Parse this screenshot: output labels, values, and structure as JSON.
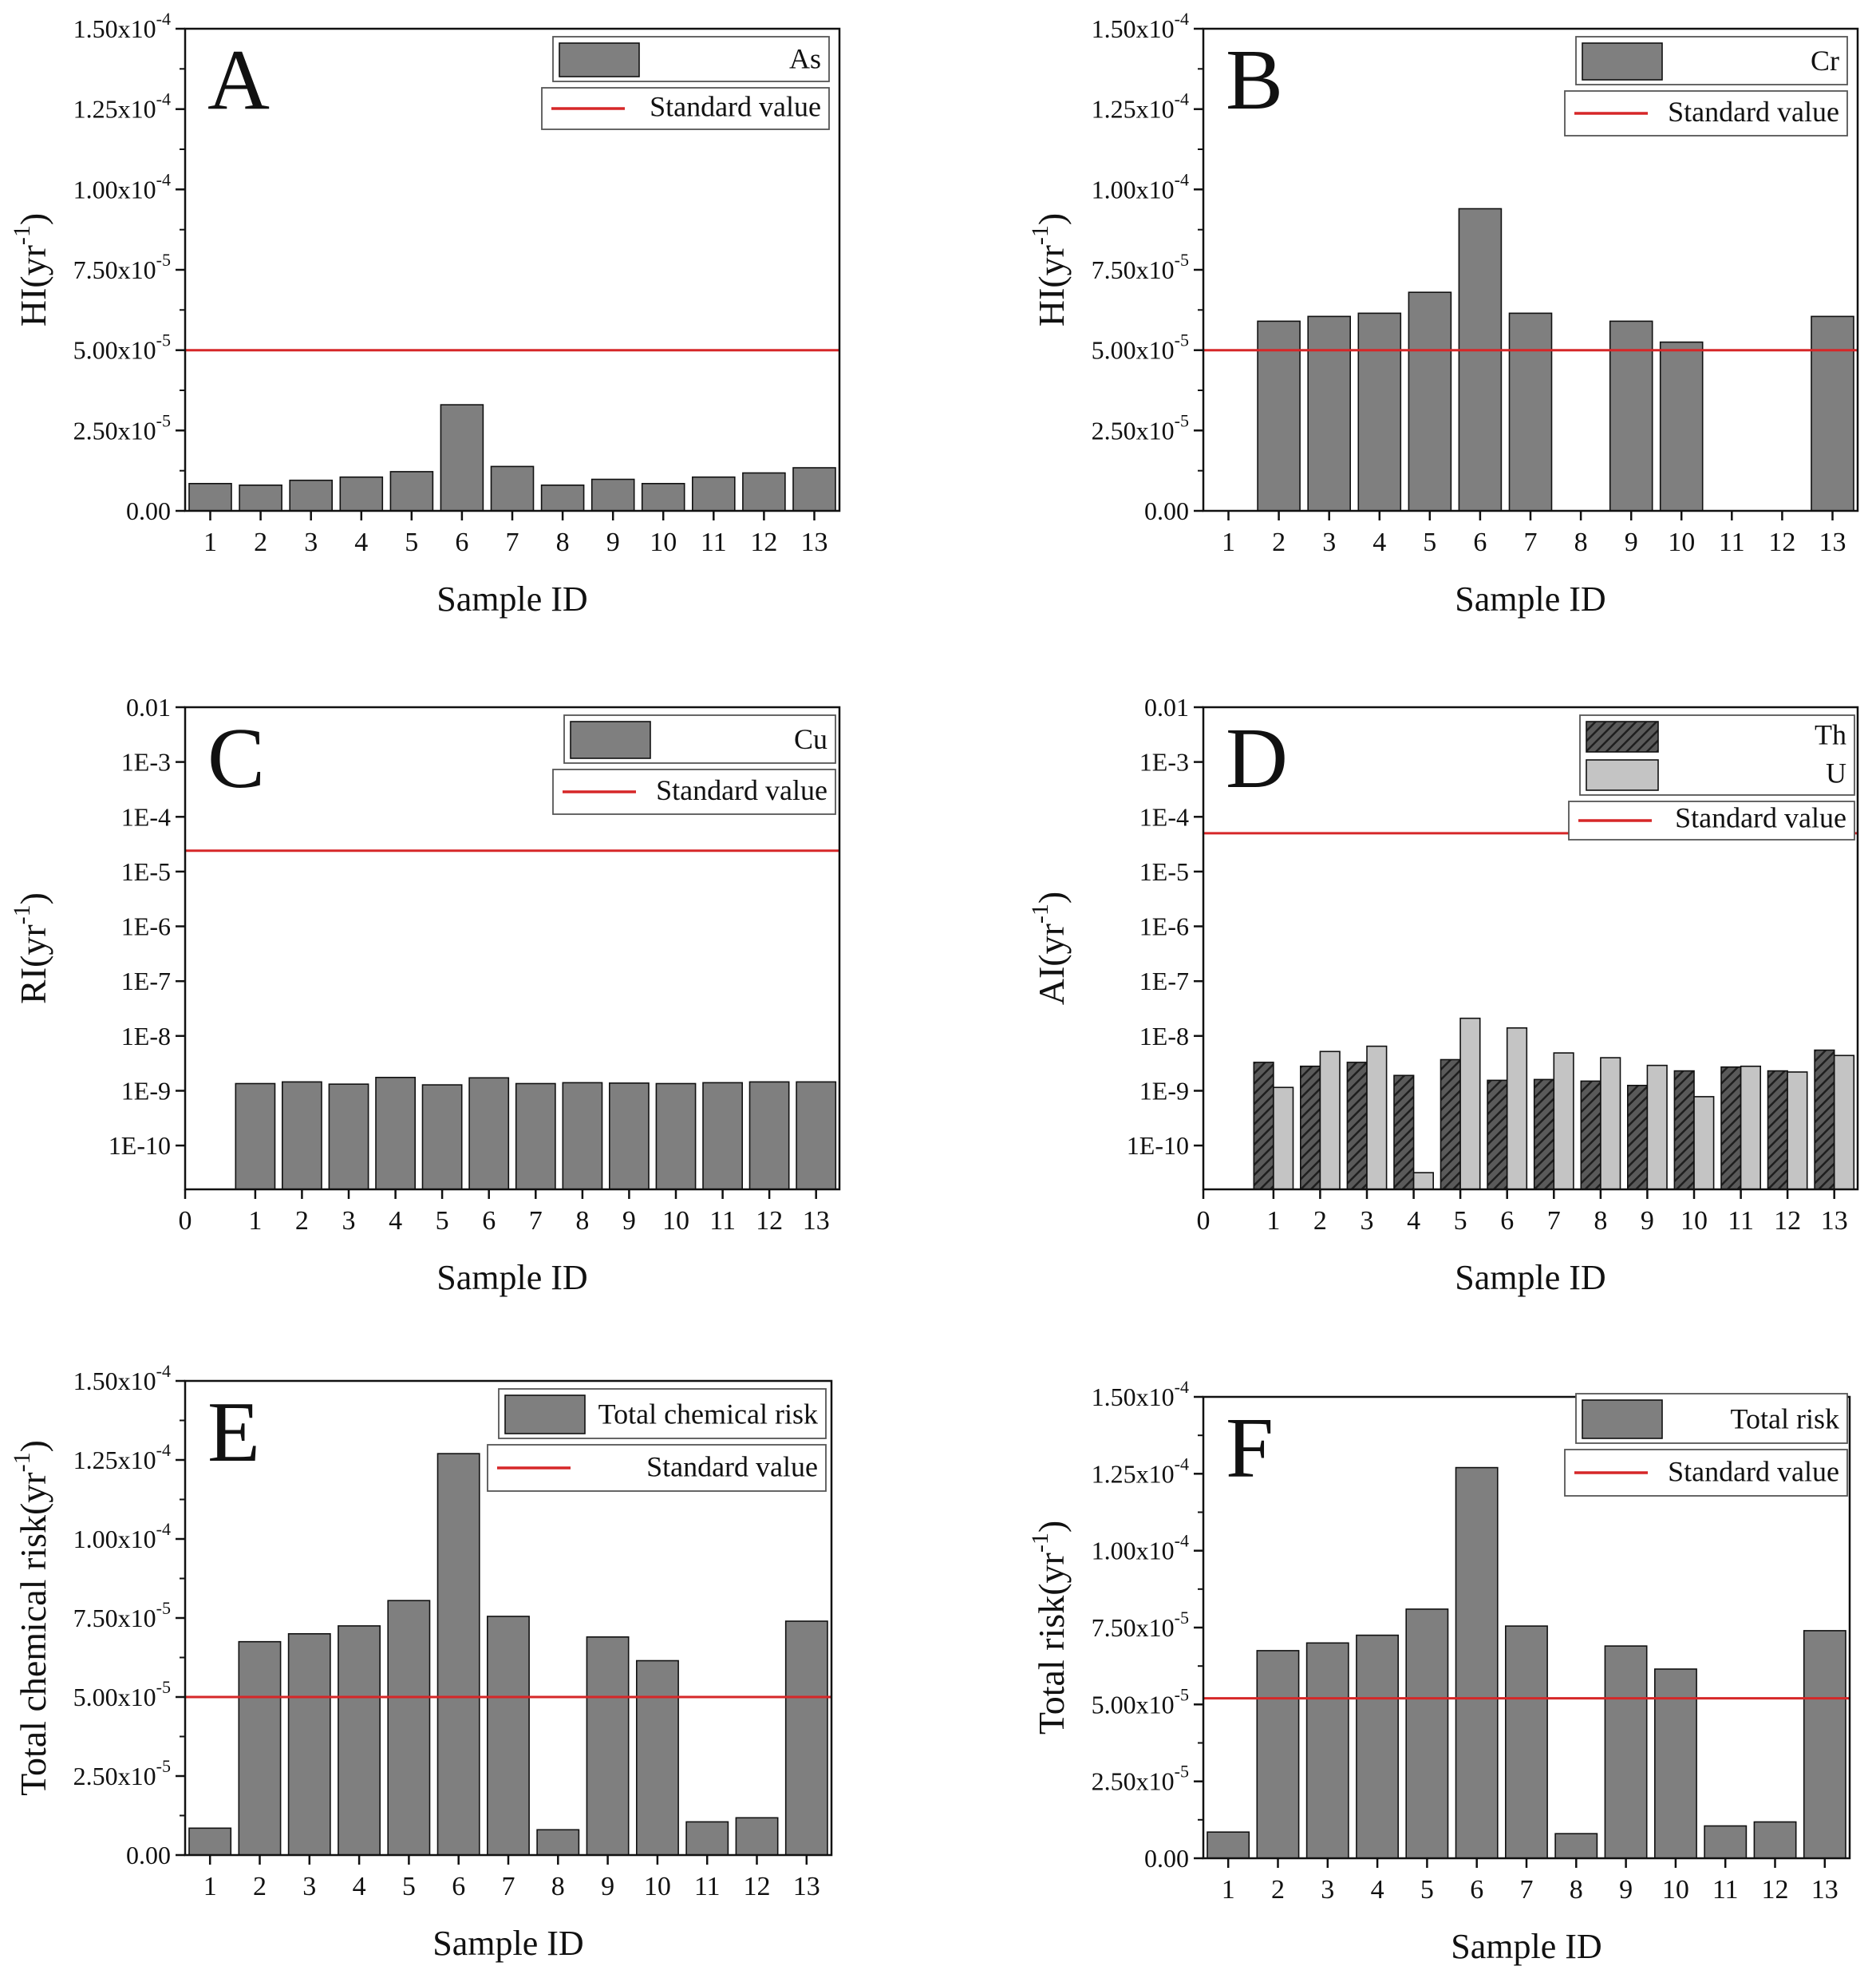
{
  "figure": {
    "layout": "3 rows x 2 columns"
  },
  "colors": {
    "bar": "#7f7f7f",
    "bar_light": "#c4c4c4",
    "standard_line": "#d62728",
    "axis": "#111111"
  },
  "chart_data": [
    {
      "id": "A",
      "panel_letter": "A",
      "type": "bar",
      "scale": "linear",
      "ylabel_main": "HI(yr",
      "ylabel_sup": "-1",
      "ylabel_close": ")",
      "xlabel": "Sample ID",
      "categories": [
        "1",
        "2",
        "3",
        "4",
        "5",
        "6",
        "7",
        "8",
        "9",
        "10",
        "11",
        "12",
        "13"
      ],
      "series": [
        {
          "name": "As",
          "style": "solid",
          "values": [
            8.5e-06,
            8e-06,
            9.5e-06,
            1.05e-05,
            1.22e-05,
            3.3e-05,
            1.38e-05,
            8e-06,
            9.8e-06,
            8.5e-06,
            1.05e-05,
            1.18e-05,
            1.34e-05
          ]
        }
      ],
      "standard_value": 5e-05,
      "standard_label": "Standard value",
      "ylim": [
        0,
        0.00015
      ],
      "yticks": [
        {
          "v": 0,
          "m": "0.00",
          "e": ""
        },
        {
          "v": 2.5e-05,
          "m": "2.50x10",
          "e": "-5"
        },
        {
          "v": 5e-05,
          "m": "5.00x10",
          "e": "-5"
        },
        {
          "v": 7.5e-05,
          "m": "7.50x10",
          "e": "-5"
        },
        {
          "v": 0.0001,
          "m": "1.00x10",
          "e": "-4"
        },
        {
          "v": 0.000125,
          "m": "1.25x10",
          "e": "-4"
        },
        {
          "v": 0.00015,
          "m": "1.50x10",
          "e": "-4"
        }
      ]
    },
    {
      "id": "B",
      "panel_letter": "B",
      "type": "bar",
      "scale": "linear",
      "ylabel_main": "HI(yr",
      "ylabel_sup": "-1",
      "ylabel_close": ")",
      "xlabel": "Sample ID",
      "categories": [
        "1",
        "2",
        "3",
        "4",
        "5",
        "6",
        "7",
        "8",
        "9",
        "10",
        "11",
        "12",
        "13"
      ],
      "series": [
        {
          "name": "Cr",
          "style": "solid",
          "values": [
            0,
            5.9e-05,
            6.05e-05,
            6.15e-05,
            6.8e-05,
            9.4e-05,
            6.15e-05,
            0,
            5.9e-05,
            5.25e-05,
            0,
            0,
            6.05e-05
          ]
        }
      ],
      "standard_value": 5e-05,
      "standard_label": "Standard value",
      "ylim": [
        0,
        0.00015
      ],
      "yticks": [
        {
          "v": 0,
          "m": "0.00",
          "e": ""
        },
        {
          "v": 2.5e-05,
          "m": "2.50x10",
          "e": "-5"
        },
        {
          "v": 5e-05,
          "m": "5.00x10",
          "e": "-5"
        },
        {
          "v": 7.5e-05,
          "m": "7.50x10",
          "e": "-5"
        },
        {
          "v": 0.0001,
          "m": "1.00x10",
          "e": "-4"
        },
        {
          "v": 0.000125,
          "m": "1.25x10",
          "e": "-4"
        },
        {
          "v": 0.00015,
          "m": "1.50x10",
          "e": "-4"
        }
      ]
    },
    {
      "id": "C",
      "panel_letter": "C",
      "type": "bar",
      "scale": "log",
      "ylabel_main": "RI(yr",
      "ylabel_sup": "-1",
      "ylabel_close": ")",
      "xlabel": "Sample ID",
      "categories": [
        "0",
        "1",
        "2",
        "3",
        "4",
        "5",
        "6",
        "7",
        "8",
        "9",
        "10",
        "11",
        "12",
        "13"
      ],
      "series": [
        {
          "name": "Cu",
          "style": "solid",
          "values": [
            null,
            1.35e-09,
            1.45e-09,
            1.32e-09,
            1.75e-09,
            1.28e-09,
            1.72e-09,
            1.35e-09,
            1.4e-09,
            1.38e-09,
            1.35e-09,
            1.4e-09,
            1.45e-09,
            1.45e-09
          ]
        }
      ],
      "standard_value": 2.4e-05,
      "standard_label": "Standard value",
      "ylim_exp": [
        -10.8,
        -2
      ],
      "yticks": [
        {
          "v": -10,
          "m": "1E-10"
        },
        {
          "v": -9,
          "m": "1E-9"
        },
        {
          "v": -8,
          "m": "1E-8"
        },
        {
          "v": -7,
          "m": "1E-7"
        },
        {
          "v": -6,
          "m": "1E-6"
        },
        {
          "v": -5,
          "m": "1E-5"
        },
        {
          "v": -4,
          "m": "1E-4"
        },
        {
          "v": -3,
          "m": "1E-3"
        },
        {
          "v": -2,
          "m": "0.01"
        }
      ]
    },
    {
      "id": "D",
      "panel_letter": "D",
      "type": "bar",
      "scale": "log",
      "ylabel_main": "AI(yr",
      "ylabel_sup": "-1",
      "ylabel_close": ")",
      "xlabel": "Sample ID",
      "categories": [
        "0",
        "1",
        "2",
        "3",
        "4",
        "5",
        "6",
        "7",
        "8",
        "9",
        "10",
        "11",
        "12",
        "13"
      ],
      "series": [
        {
          "name": "Th",
          "style": "hatch",
          "values": [
            null,
            3.3e-09,
            2.8e-09,
            3.3e-09,
            1.9e-09,
            3.7e-09,
            1.55e-09,
            1.6e-09,
            1.5e-09,
            1.25e-09,
            2.3e-09,
            2.7e-09,
            2.3e-09,
            5.5e-09
          ]
        },
        {
          "name": "U",
          "style": "light",
          "values": [
            null,
            1.15e-09,
            5.2e-09,
            6.5e-09,
            3.2e-11,
            2.1e-08,
            1.4e-08,
            4.9e-09,
            4e-09,
            2.9e-09,
            7.8e-10,
            2.8e-09,
            2.2e-09,
            4.4e-09
          ]
        }
      ],
      "standard_value": 5e-05,
      "standard_label": "Standard value",
      "ylim_exp": [
        -10.8,
        -2
      ],
      "yticks": [
        {
          "v": -10,
          "m": "1E-10"
        },
        {
          "v": -9,
          "m": "1E-9"
        },
        {
          "v": -8,
          "m": "1E-8"
        },
        {
          "v": -7,
          "m": "1E-7"
        },
        {
          "v": -6,
          "m": "1E-6"
        },
        {
          "v": -5,
          "m": "1E-5"
        },
        {
          "v": -4,
          "m": "1E-4"
        },
        {
          "v": -3,
          "m": "1E-3"
        },
        {
          "v": -2,
          "m": "0.01"
        }
      ]
    },
    {
      "id": "E",
      "panel_letter": "E",
      "type": "bar",
      "scale": "linear",
      "ylabel_main": "Total chemical risk(yr",
      "ylabel_sup": "-1",
      "ylabel_close": ")",
      "xlabel": "Sample ID",
      "categories": [
        "1",
        "2",
        "3",
        "4",
        "5",
        "6",
        "7",
        "8",
        "9",
        "10",
        "11",
        "12",
        "13"
      ],
      "series": [
        {
          "name": "Total chemical risk",
          "style": "solid",
          "values": [
            8.5e-06,
            6.75e-05,
            7e-05,
            7.25e-05,
            8.05e-05,
            0.000127,
            7.55e-05,
            8e-06,
            6.9e-05,
            6.15e-05,
            1.05e-05,
            1.18e-05,
            7.4e-05
          ]
        }
      ],
      "standard_value": 5e-05,
      "standard_label": "Standard value",
      "ylim": [
        0,
        0.00015
      ],
      "yticks": [
        {
          "v": 0,
          "m": "0.00",
          "e": ""
        },
        {
          "v": 2.5e-05,
          "m": "2.50x10",
          "e": "-5"
        },
        {
          "v": 5e-05,
          "m": "5.00x10",
          "e": "-5"
        },
        {
          "v": 7.5e-05,
          "m": "7.50x10",
          "e": "-5"
        },
        {
          "v": 0.0001,
          "m": "1.00x10",
          "e": "-4"
        },
        {
          "v": 0.000125,
          "m": "1.25x10",
          "e": "-4"
        },
        {
          "v": 0.00015,
          "m": "1.50x10",
          "e": "-4"
        }
      ]
    },
    {
      "id": "F",
      "panel_letter": "F",
      "type": "bar",
      "scale": "linear",
      "ylabel_main": "Total risk(yr",
      "ylabel_sup": "-1",
      "ylabel_close": ")",
      "xlabel": "Sample ID",
      "categories": [
        "1",
        "2",
        "3",
        "4",
        "5",
        "6",
        "7",
        "8",
        "9",
        "10",
        "11",
        "12",
        "13"
      ],
      "series": [
        {
          "name": "Total risk",
          "style": "solid",
          "values": [
            8.5e-06,
            6.75e-05,
            7e-05,
            7.25e-05,
            8.1e-05,
            0.000127,
            7.55e-05,
            8e-06,
            6.9e-05,
            6.15e-05,
            1.05e-05,
            1.18e-05,
            7.4e-05
          ]
        }
      ],
      "standard_value": 5.2e-05,
      "standard_label": "Standard value",
      "ylim": [
        0,
        0.00015
      ],
      "yticks": [
        {
          "v": 0,
          "m": "0.00",
          "e": ""
        },
        {
          "v": 2.5e-05,
          "m": "2.50x10",
          "e": "-5"
        },
        {
          "v": 5e-05,
          "m": "5.00x10",
          "e": "-5"
        },
        {
          "v": 7.5e-05,
          "m": "7.50x10",
          "e": "-5"
        },
        {
          "v": 0.0001,
          "m": "1.00x10",
          "e": "-4"
        },
        {
          "v": 0.000125,
          "m": "1.25x10",
          "e": "-4"
        },
        {
          "v": 0.00015,
          "m": "1.50x10",
          "e": "-4"
        }
      ]
    }
  ]
}
